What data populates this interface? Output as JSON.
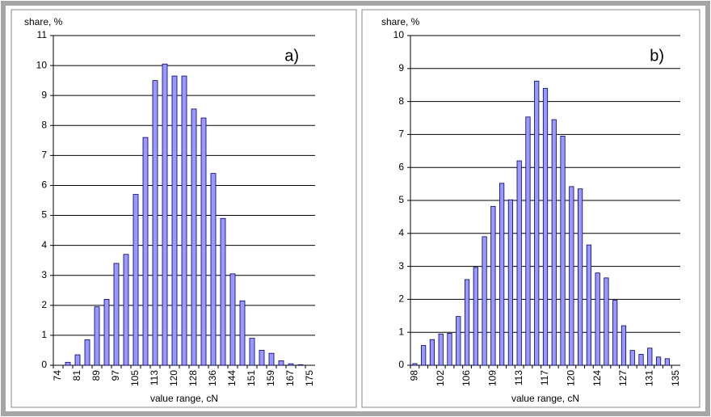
{
  "chart_data": [
    {
      "type": "bar",
      "annotation": "a)",
      "y_label": "share, %",
      "x_label": "value range, cN",
      "categories": [
        "74",
        null,
        "81",
        null,
        "89",
        null,
        "97",
        null,
        "105",
        null,
        "113",
        null,
        "120",
        null,
        "128",
        null,
        "136",
        null,
        "144",
        null,
        "151",
        null,
        "159",
        null,
        "167",
        null,
        "175"
      ],
      "values": [
        0,
        0.1,
        0.35,
        0.85,
        1.95,
        2.2,
        3.4,
        3.7,
        5.7,
        7.6,
        9.5,
        10.05,
        9.65,
        9.65,
        8.55,
        8.25,
        6.4,
        4.9,
        3.05,
        2.15,
        0.9,
        0.5,
        0.4,
        0.15,
        0.05,
        0.02,
        0
      ],
      "color": "#9999ff",
      "ylim": [
        0,
        11
      ],
      "yticks": [
        0,
        1,
        2,
        3,
        4,
        5,
        6,
        7,
        8,
        9,
        10,
        11
      ],
      "grid": true
    },
    {
      "type": "bar",
      "annotation": "b)",
      "y_label": "share, %",
      "x_label": "value range, cN",
      "categories": [
        "98",
        null,
        null,
        "102",
        null,
        null,
        "106",
        null,
        null,
        "109",
        null,
        null,
        "113",
        null,
        null,
        "117",
        null,
        null,
        "120",
        null,
        null,
        "124",
        null,
        null,
        "127",
        null,
        null,
        "131",
        null,
        null,
        "135"
      ],
      "values": [
        0.05,
        0.6,
        0.78,
        0.95,
        0.97,
        1.48,
        2.6,
        2.97,
        3.9,
        4.82,
        5.52,
        5.02,
        6.2,
        7.53,
        8.62,
        8.4,
        7.45,
        6.95,
        5.42,
        5.35,
        3.65,
        2.8,
        2.65,
        1.97,
        1.2,
        0.45,
        0.33,
        0.52,
        0.25,
        0.2,
        0
      ],
      "color": "#9999ff",
      "ylim": [
        0,
        10
      ],
      "yticks": [
        0,
        1,
        2,
        3,
        4,
        5,
        6,
        7,
        8,
        9,
        10
      ],
      "grid": true
    }
  ]
}
